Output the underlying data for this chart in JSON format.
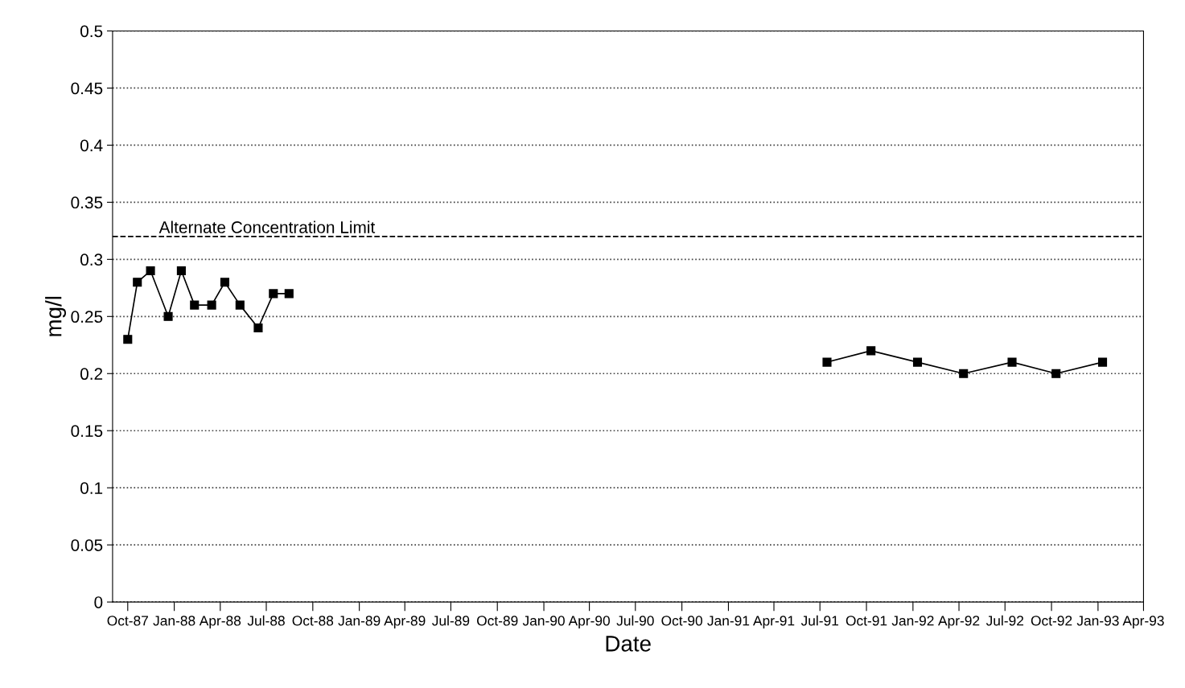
{
  "chart_data": {
    "type": "line",
    "xlabel": "Date",
    "ylabel": "mg/l",
    "series": [
      {
        "color": "#000000",
        "x": [
          "1987-10-01",
          "1987-10-20",
          "1987-11-15",
          "1987-12-20",
          "1988-01-15",
          "1988-02-10",
          "1988-03-15",
          "1988-04-10",
          "1988-05-10",
          "1988-06-15",
          "1988-07-15",
          "1988-08-15"
        ],
        "values": [
          0.23,
          0.28,
          0.29,
          0.25,
          0.29,
          0.26,
          0.26,
          0.28,
          0.26,
          0.24,
          0.27,
          0.27
        ]
      },
      {
        "color": "#000000",
        "x": [
          "1991-07-15",
          "1991-10-10",
          "1992-01-10",
          "1992-04-10",
          "1992-07-15",
          "1992-10-10",
          "1993-01-10"
        ],
        "values": [
          0.21,
          0.22,
          0.21,
          0.2,
          0.21,
          0.2,
          0.21
        ]
      }
    ],
    "ref_lines": [
      {
        "axis": "y",
        "value": 0.32,
        "label": "Alternate Concentration Limit",
        "color": "#000000",
        "line_style": "dashed"
      }
    ],
    "xlim": [
      "1987-09-01",
      "1993-04-01"
    ],
    "xticks": [
      {
        "value": "1987-10-01",
        "label": "Oct-87"
      },
      {
        "value": "1988-01-01",
        "label": "Jan-88"
      },
      {
        "value": "1988-04-01",
        "label": "Apr-88"
      },
      {
        "value": "1988-07-01",
        "label": "Jul-88"
      },
      {
        "value": "1988-10-01",
        "label": "Oct-88"
      },
      {
        "value": "1989-01-01",
        "label": "Jan-89"
      },
      {
        "value": "1989-04-01",
        "label": "Apr-89"
      },
      {
        "value": "1989-07-01",
        "label": "Jul-89"
      },
      {
        "value": "1989-10-01",
        "label": "Oct-89"
      },
      {
        "value": "1990-01-01",
        "label": "Jan-90"
      },
      {
        "value": "1990-04-01",
        "label": "Apr-90"
      },
      {
        "value": "1990-07-01",
        "label": "Jul-90"
      },
      {
        "value": "1990-10-01",
        "label": "Oct-90"
      },
      {
        "value": "1991-01-01",
        "label": "Jan-91"
      },
      {
        "value": "1991-04-01",
        "label": "Apr-91"
      },
      {
        "value": "1991-07-01",
        "label": "Jul-91"
      },
      {
        "value": "1991-10-01",
        "label": "Oct-91"
      },
      {
        "value": "1992-01-01",
        "label": "Jan-92"
      },
      {
        "value": "1992-04-01",
        "label": "Apr-92"
      },
      {
        "value": "1992-07-01",
        "label": "Jul-92"
      },
      {
        "value": "1992-10-01",
        "label": "Oct-92"
      },
      {
        "value": "1993-01-01",
        "label": "Jan-93"
      },
      {
        "value": "1993-04-01",
        "label": "Apr-93"
      }
    ],
    "ylim": [
      0,
      0.5
    ],
    "yticks": [
      0,
      0.05,
      0.1,
      0.15,
      0.2,
      0.25,
      0.3,
      0.35,
      0.4,
      0.45,
      0.5
    ],
    "grid": "y",
    "legend": false,
    "marker": "square",
    "line_style": "solid"
  }
}
